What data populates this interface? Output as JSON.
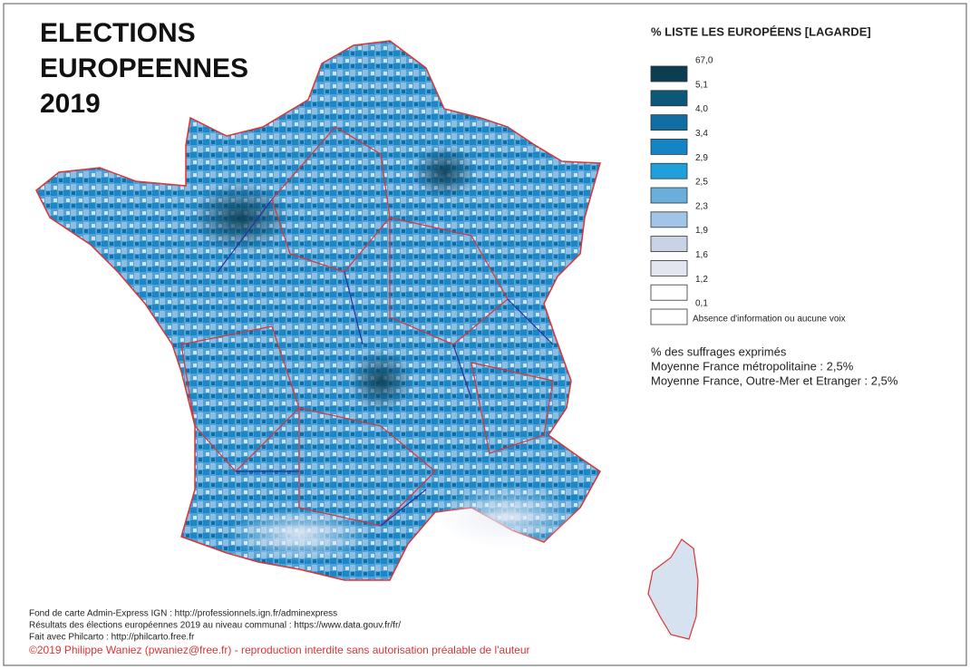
{
  "header": {
    "title_lines": [
      "ELECTIONS",
      "EUROPEENNES",
      "2019"
    ]
  },
  "legend": {
    "title": "% LISTE LES EUROPÉENS [LAGARDE]",
    "breaks": [
      "67,0",
      "5,1",
      "4,0",
      "3,4",
      "2,9",
      "2,5",
      "2,3",
      "1,9",
      "1,6",
      "1,2",
      "0,1"
    ],
    "colors": [
      "#0d3d52",
      "#0b5878",
      "#0f6fa3",
      "#1584c4",
      "#1f9fdc",
      "#6aafd9",
      "#a2c4e6",
      "#c9d3e6",
      "#e4e6ef",
      "#ffffff"
    ],
    "no_data": "Absence d'information ou aucune voix"
  },
  "stats": [
    "% des suffrages exprimés",
    "Moyenne France métropolitaine : 2,5%",
    "Moyenne France, Outre-Mer et Etranger : 2,5%"
  ],
  "notes": [
    "Fond de carte Admin-Express IGN : http://professionnels.ign.fr/adminexpress",
    "Résultats des élections européennes 2019 au niveau communal : https://www.data.gouv.fr/fr/",
    "Fait avec Philcarto : http://philcarto.free.fr"
  ],
  "copyright": "©2019 Philippe Waniez (pwaniez@free.fr) - reproduction interdite sans autorisation préalable de l'auteur"
}
